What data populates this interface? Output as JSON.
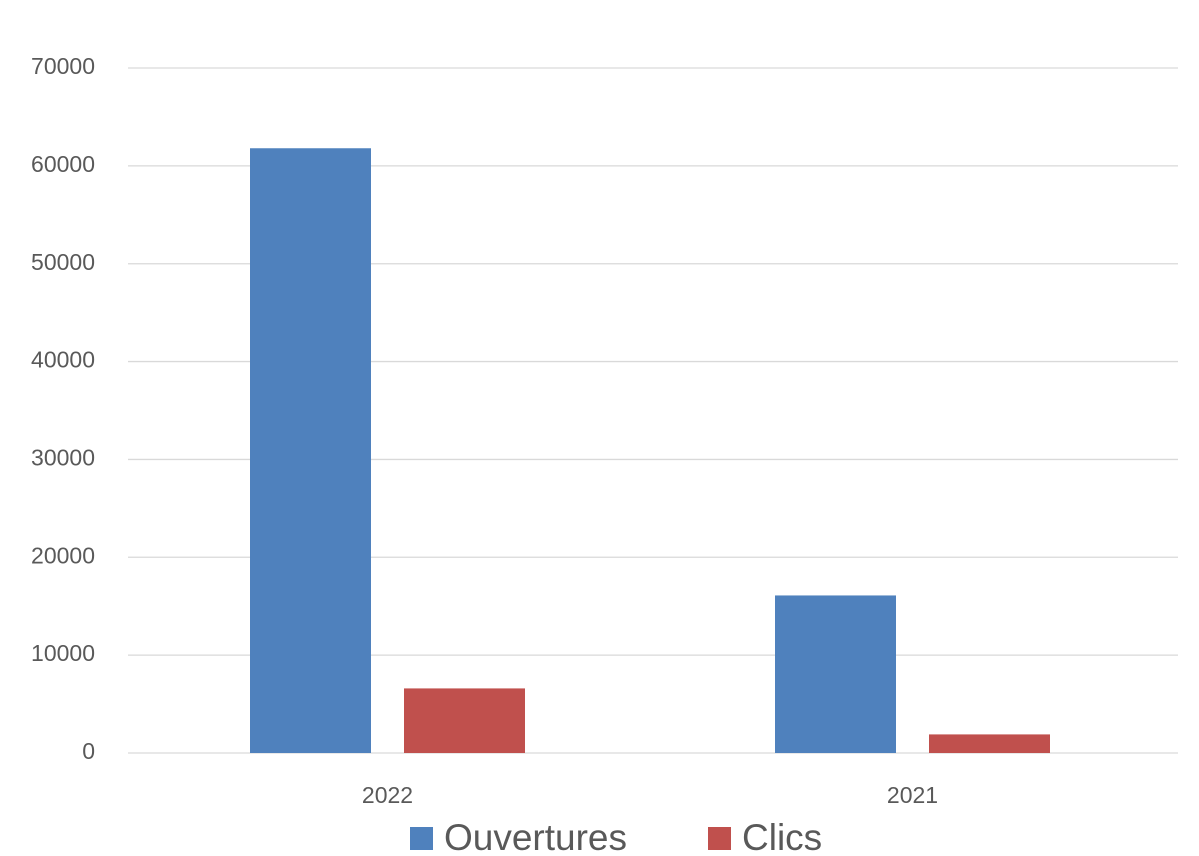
{
  "chart_data": {
    "type": "bar",
    "categories": [
      "2022",
      "2021"
    ],
    "series": [
      {
        "name": "Ouvertures",
        "color": "#4f81bd",
        "values": [
          61800,
          16100
        ]
      },
      {
        "name": "Clics",
        "color": "#c0504d",
        "values": [
          6600,
          1900
        ]
      }
    ],
    "ylim": [
      0,
      70000
    ],
    "yticks": [
      0,
      10000,
      20000,
      30000,
      40000,
      50000,
      60000,
      70000
    ],
    "grid": true,
    "legend": "bottom"
  }
}
